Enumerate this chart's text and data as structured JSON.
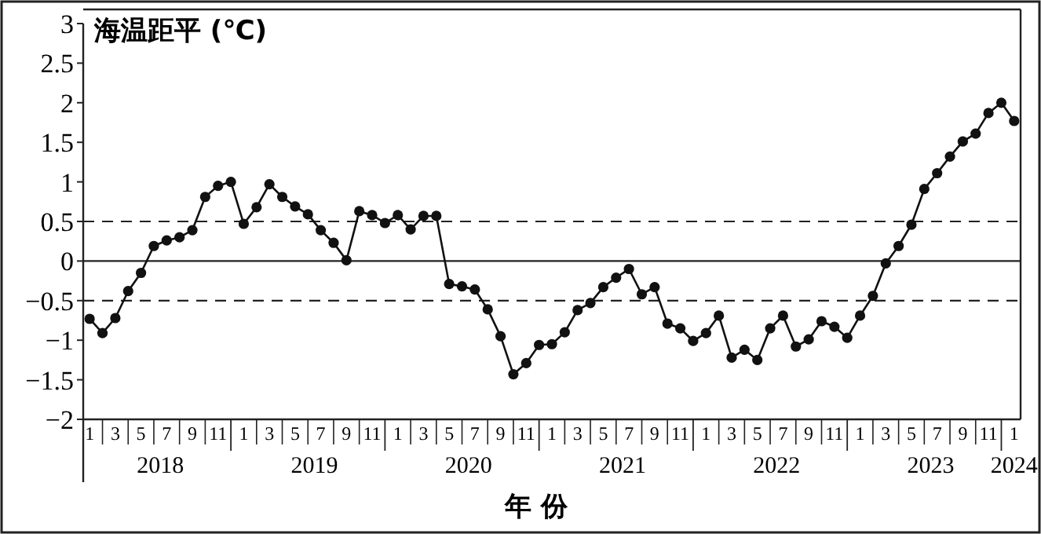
{
  "chart_data": {
    "type": "line",
    "ylabel": "海温距平 (℃)",
    "xlabel": "年 份",
    "categories": [
      "1",
      null,
      "3",
      null,
      "5",
      null,
      "7",
      null,
      "9",
      null,
      "11",
      null,
      "1",
      null,
      "3",
      null,
      "5",
      null,
      "7",
      null,
      "9",
      null,
      "11",
      null,
      "1",
      null,
      "3",
      null,
      "5",
      null,
      "7",
      null,
      "9",
      null,
      "11",
      null,
      "1",
      null,
      "3",
      null,
      "5",
      null,
      "7",
      null,
      "9",
      null,
      "11",
      null,
      "1",
      null,
      "3",
      null,
      "5",
      null,
      "7",
      null,
      "9",
      null,
      "11",
      null,
      "1",
      null,
      "3",
      null,
      "5",
      null,
      "7",
      null,
      "9",
      null,
      "11",
      null,
      "1"
    ],
    "series": [
      {
        "color": "#111111",
        "values": [
          -0.73,
          -0.91,
          -0.72,
          -0.38,
          -0.15,
          0.19,
          0.26,
          0.3,
          0.39,
          0.81,
          0.95,
          1.0,
          0.47,
          0.68,
          0.97,
          0.81,
          0.69,
          0.59,
          0.39,
          0.23,
          0.01,
          0.63,
          0.58,
          0.48,
          0.58,
          0.4,
          0.57,
          0.57,
          -0.29,
          -0.32,
          -0.36,
          -0.61,
          -0.95,
          -1.43,
          -1.29,
          -1.06,
          -1.05,
          -0.9,
          -0.62,
          -0.53,
          -0.33,
          -0.21,
          -0.1,
          -0.42,
          -0.33,
          -0.79,
          -0.85,
          -1.01,
          -0.91,
          -0.69,
          -1.22,
          -1.12,
          -1.25,
          -0.85,
          -0.69,
          -1.08,
          -0.99,
          -0.76,
          -0.83,
          -0.97,
          -0.69,
          -0.44,
          -0.03,
          0.19,
          0.46,
          0.91,
          1.11,
          1.32,
          1.51,
          1.61,
          1.87,
          2.0,
          1.77
        ]
      }
    ],
    "ylim": [
      -2,
      3
    ],
    "yticks": [
      {
        "value": -2,
        "label": "−2"
      },
      {
        "value": -1.5,
        "label": "−1.5"
      },
      {
        "value": -1,
        "label": "−1"
      },
      {
        "value": -0.5,
        "label": "−0.5"
      },
      0,
      0.5,
      1,
      1.5,
      2,
      2.5,
      3
    ],
    "ref_lines": [
      {
        "axis": "y",
        "value": 0.5,
        "line_style": "dashed"
      },
      {
        "axis": "y",
        "value": 0,
        "line_style": "solid"
      },
      {
        "axis": "y",
        "value": -0.5,
        "line_style": "dashed"
      }
    ],
    "annotations": [
      "2018",
      "2019",
      "2020",
      "2021",
      "2022",
      "2023",
      "2024"
    ],
    "marker": "circle",
    "line_style": "solid",
    "grid": false
  }
}
